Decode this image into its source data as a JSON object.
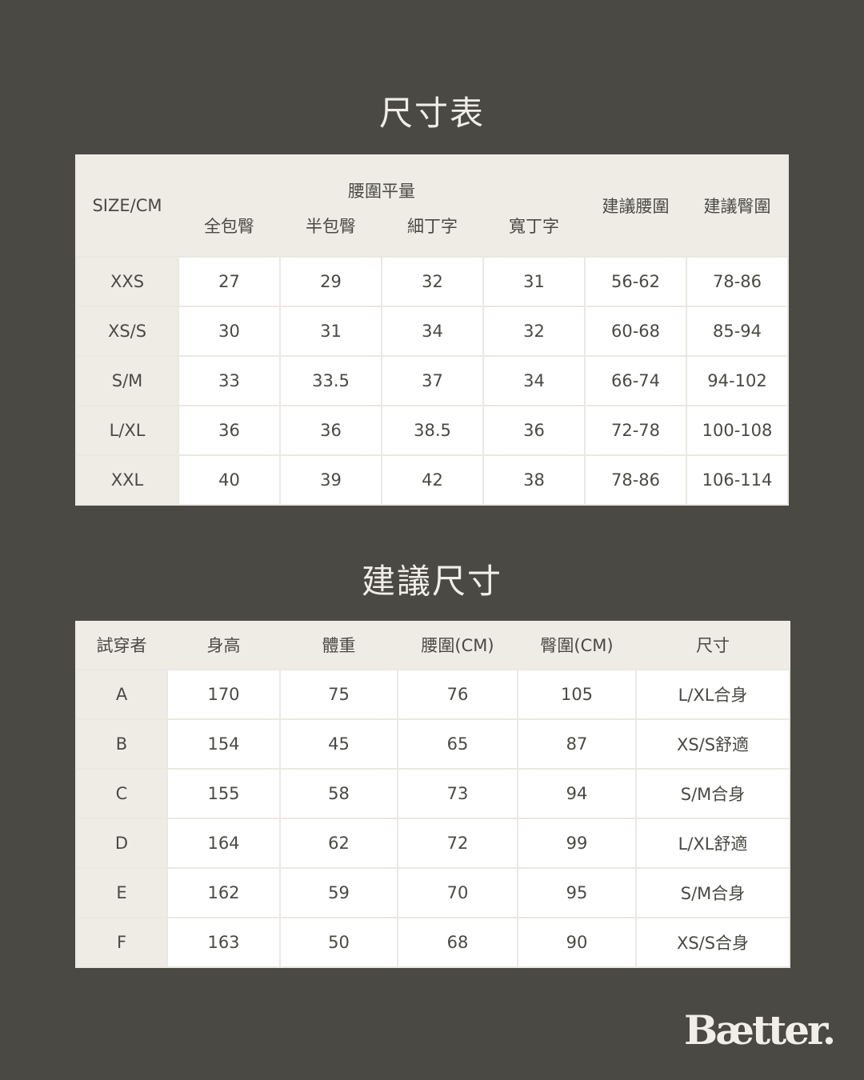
{
  "size_chart": {
    "title": "尺寸表",
    "corner": "SIZE/CM",
    "group_header": "腰圍平量",
    "sub_headers": [
      "全包臀",
      "半包臀",
      "細丁字",
      "寬丁字"
    ],
    "extra_headers": [
      "建議腰圍",
      "建議臀圍"
    ],
    "rows": [
      [
        "XXS",
        "27",
        "29",
        "32",
        "31",
        "56-62",
        "78-86"
      ],
      [
        "XS/S",
        "30",
        "31",
        "34",
        "32",
        "60-68",
        "85-94"
      ],
      [
        "S/M",
        "33",
        "33.5",
        "37",
        "34",
        "66-74",
        "94-102"
      ],
      [
        "L/XL",
        "36",
        "36",
        "38.5",
        "36",
        "72-78",
        "100-108"
      ],
      [
        "XXL",
        "40",
        "39",
        "42",
        "38",
        "78-86",
        "106-114"
      ]
    ]
  },
  "recommend": {
    "title": "建議尺寸",
    "headers": [
      "試穿者",
      "身高",
      "體重",
      "腰圍(CM)",
      "臀圍(CM)",
      "尺寸"
    ],
    "rows": [
      [
        "A",
        "170",
        "75",
        "76",
        "105",
        "L/XL合身"
      ],
      [
        "B",
        "154",
        "45",
        "65",
        "87",
        "XS/S舒適"
      ],
      [
        "C",
        "155",
        "58",
        "73",
        "94",
        "S/M合身"
      ],
      [
        "D",
        "164",
        "62",
        "72",
        "99",
        "L/XL舒適"
      ],
      [
        "E",
        "162",
        "59",
        "70",
        "95",
        "S/M合身"
      ],
      [
        "F",
        "163",
        "50",
        "68",
        "90",
        "XS/S合身"
      ]
    ]
  },
  "brand": {
    "logo_text": "Bætter."
  },
  "colors": {
    "background": "#4a4944",
    "header": "#efece6",
    "cell": "#ffffff",
    "text": "#4a4944"
  }
}
